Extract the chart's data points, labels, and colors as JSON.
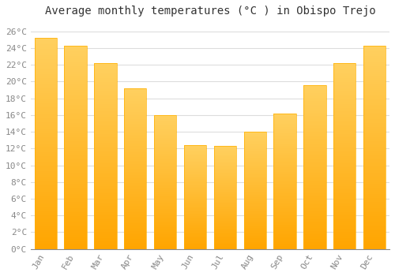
{
  "title": "Average monthly temperatures (°C ) in Obispo Trejo",
  "months": [
    "Jan",
    "Feb",
    "Mar",
    "Apr",
    "May",
    "Jun",
    "Jul",
    "Aug",
    "Sep",
    "Oct",
    "Nov",
    "Dec"
  ],
  "values": [
    25.2,
    24.3,
    22.2,
    19.2,
    16.0,
    12.4,
    12.3,
    14.0,
    16.2,
    19.6,
    22.2,
    24.3
  ],
  "bar_color_bottom": "#FFA500",
  "bar_color_top": "#FFD060",
  "ylim": [
    0,
    27
  ],
  "ytick_step": 2,
  "background_color": "#FFFFFF",
  "grid_color": "#DDDDDD",
  "title_fontsize": 10,
  "tick_fontsize": 8,
  "font_family": "monospace"
}
